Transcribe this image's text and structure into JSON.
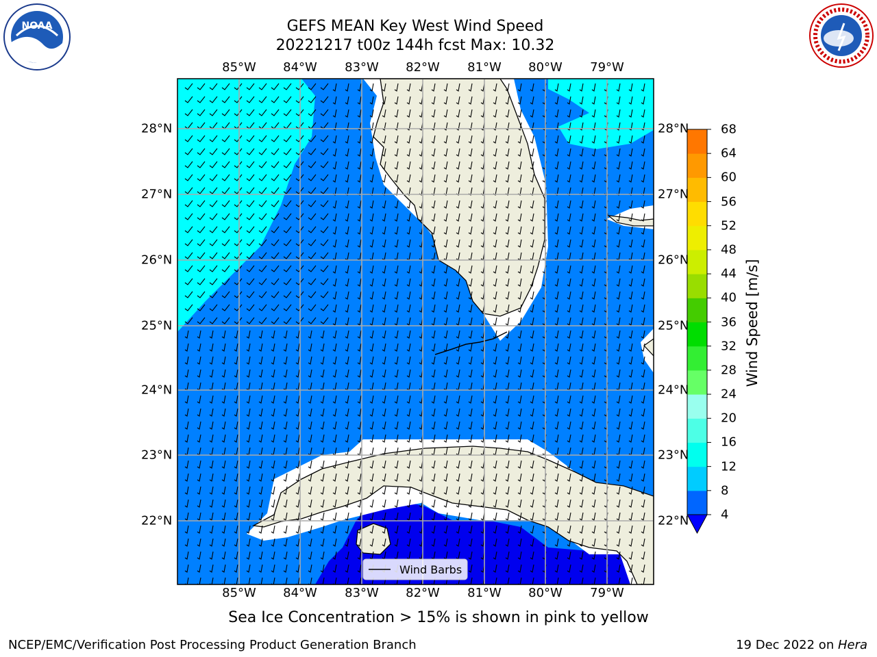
{
  "title_line1": "GEFS MEAN Key West Wind Speed",
  "title_line2": "20221217 t00z 144h fcst   Max: 10.32",
  "lon_ticks": [
    "85°W",
    "84°W",
    "83°W",
    "82°W",
    "81°W",
    "80°W",
    "79°W"
  ],
  "lat_ticks": [
    "28°N",
    "27°N",
    "26°N",
    "25°N",
    "24°N",
    "23°N",
    "22°N"
  ],
  "colorbar": {
    "label": "Wind Speed [m/s]",
    "ticks": [
      "4",
      "8",
      "12",
      "16",
      "20",
      "24",
      "28",
      "32",
      "36",
      "40",
      "44",
      "48",
      "52",
      "56",
      "60",
      "64",
      "68"
    ],
    "colors": [
      "#0066ff",
      "#00ccff",
      "#00ffee",
      "#4dffe6",
      "#99ffee",
      "#66ff66",
      "#33ee33",
      "#00dd00",
      "#44cc00",
      "#99dd00",
      "#ccee00",
      "#eeee00",
      "#ffdd00",
      "#ffbb00",
      "#ff9900",
      "#ff7700",
      "#ff4400",
      "#ff0000"
    ],
    "under_color": "#0000ff"
  },
  "legend": {
    "label": "Wind Barbs"
  },
  "note": "Sea Ice Concentration > 15% is shown in pink to yellow",
  "footer_left": "NCEP/EMC/Verification Post Processing Product Generation Branch",
  "footer_right_prefix": "19 Dec 2022 on ",
  "footer_right_host": "Hera",
  "logos": {
    "noaa": "NOAA",
    "nws": "NATIONAL WEATHER SERVICE"
  },
  "field_colors": {
    "land": "#eeeedd",
    "cyan": "#00ffff",
    "blue": "#0080ff",
    "darkblue": "#0000ee"
  }
}
